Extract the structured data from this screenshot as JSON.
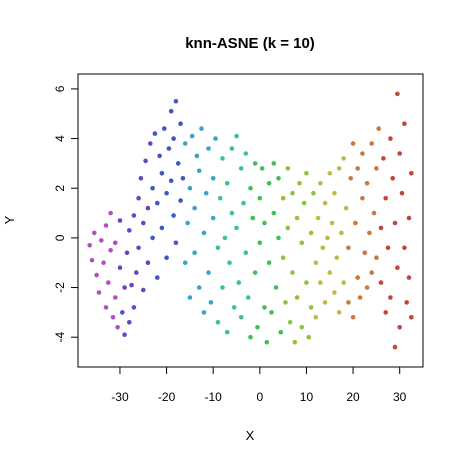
{
  "chart_data": {
    "type": "scatter",
    "title": "knn-ASNE (k = 10)",
    "xlabel": "X",
    "ylabel": "Y",
    "xlim": [
      -39,
      35
    ],
    "ylim": [
      -5.2,
      6.6
    ],
    "x_ticks": [
      -30,
      -20,
      -10,
      0,
      10,
      20,
      30
    ],
    "x_tick_labels": [
      "-30",
      "-20",
      "-10",
      "0",
      "10",
      "20",
      "30"
    ],
    "y_ticks": [
      -4,
      -2,
      0,
      2,
      4,
      6
    ],
    "y_tick_labels": [
      "-4",
      "-2",
      "0",
      "2",
      "4",
      "6"
    ],
    "grid": false,
    "legend": "none",
    "color_scale": [
      "#b54fc0",
      "#6a43c2",
      "#3f56c4",
      "#3aa3c6",
      "#3fbf9c",
      "#43bd55",
      "#8fc23f",
      "#c2b84a",
      "#c6783f",
      "#c3443f"
    ],
    "points": [
      [
        -36.5,
        -0.3
      ],
      [
        -36,
        -0.9
      ],
      [
        -35.5,
        0.2
      ],
      [
        -35,
        -1.5
      ],
      [
        -34.5,
        -2.2
      ],
      [
        -34,
        -0.1
      ],
      [
        -33.5,
        -1
      ],
      [
        -33,
        0.5
      ],
      [
        -33,
        -2.8
      ],
      [
        -32.5,
        -1.8
      ],
      [
        -32,
        -0.5
      ],
      [
        -32,
        1
      ],
      [
        -31.5,
        -3.2
      ],
      [
        -31,
        -2.4
      ],
      [
        -31,
        -0.2
      ],
      [
        -30.5,
        -3.6
      ],
      [
        -30,
        -1.2
      ],
      [
        -30,
        0.7
      ],
      [
        -29.5,
        -3
      ],
      [
        -29,
        -3.9
      ],
      [
        -29,
        -2
      ],
      [
        -28.5,
        -0.6
      ],
      [
        -28,
        -3.4
      ],
      [
        -28,
        0.3
      ],
      [
        -27.5,
        -1.9
      ],
      [
        -27,
        -2.8
      ],
      [
        -27,
        0.9
      ],
      [
        -26.5,
        -1.4
      ],
      [
        -26,
        1.6
      ],
      [
        -26,
        -0.4
      ],
      [
        -25.5,
        2.4
      ],
      [
        -25,
        0.6
      ],
      [
        -25,
        -2.1
      ],
      [
        -24.5,
        3.1
      ],
      [
        -24,
        1.2
      ],
      [
        -24,
        -1
      ],
      [
        -23.5,
        3.8
      ],
      [
        -23,
        2
      ],
      [
        -23,
        0
      ],
      [
        -22.5,
        4.2
      ],
      [
        -22,
        1.4
      ],
      [
        -22,
        -1.6
      ],
      [
        -21.5,
        3.3
      ],
      [
        -21,
        2.6
      ],
      [
        -21,
        0.4
      ],
      [
        -20.5,
        4.4
      ],
      [
        -20,
        1.8
      ],
      [
        -20,
        -0.8
      ],
      [
        -19.5,
        3.6
      ],
      [
        -19,
        5.1
      ],
      [
        -19,
        2.3
      ],
      [
        -18.5,
        0.9
      ],
      [
        -18.5,
        4
      ],
      [
        -18,
        5.5
      ],
      [
        -18,
        -0.2
      ],
      [
        -17.5,
        3
      ],
      [
        -17,
        1.5
      ],
      [
        -17,
        4.6
      ],
      [
        -16.5,
        2.4
      ],
      [
        -16,
        -1
      ],
      [
        -16,
        3.8
      ],
      [
        -15.5,
        0.6
      ],
      [
        -15,
        2
      ],
      [
        -15,
        -2.4
      ],
      [
        -14.5,
        4.1
      ],
      [
        -14,
        1.2
      ],
      [
        -14,
        -0.6
      ],
      [
        -13.5,
        3.3
      ],
      [
        -13,
        -2
      ],
      [
        -13,
        2.7
      ],
      [
        -12.5,
        4.4
      ],
      [
        -12,
        0.2
      ],
      [
        -12,
        -3
      ],
      [
        -11.5,
        1.8
      ],
      [
        -11,
        3.6
      ],
      [
        -11,
        -1.4
      ],
      [
        -10.5,
        -2.6
      ],
      [
        -10,
        0.8
      ],
      [
        -10,
        2.4
      ],
      [
        -9.5,
        4
      ],
      [
        -9,
        -3.4
      ],
      [
        -9,
        -0.4
      ],
      [
        -8.5,
        1.6
      ],
      [
        -8,
        3.2
      ],
      [
        -8,
        -2
      ],
      [
        -7.5,
        0
      ],
      [
        -7,
        2.2
      ],
      [
        -7,
        -3.8
      ],
      [
        -6.5,
        -1
      ],
      [
        -6,
        3.6
      ],
      [
        -6,
        1
      ],
      [
        -5.5,
        -2.8
      ],
      [
        -5,
        4.1
      ],
      [
        -5,
        0.4
      ],
      [
        -4.5,
        -1.8
      ],
      [
        -4,
        2.8
      ],
      [
        -4,
        -3.2
      ],
      [
        -3.5,
        1.4
      ],
      [
        -3,
        -0.6
      ],
      [
        -3,
        3.4
      ],
      [
        -2.5,
        -2.4
      ],
      [
        -2,
        2
      ],
      [
        -2,
        -4
      ],
      [
        -1.5,
        0.8
      ],
      [
        -1,
        3
      ],
      [
        -1,
        -1.4
      ],
      [
        -0.5,
        -3.6
      ],
      [
        0,
        1.6
      ],
      [
        0,
        -0.2
      ],
      [
        0.5,
        2.8
      ],
      [
        1,
        -2.8
      ],
      [
        1,
        0.6
      ],
      [
        1.5,
        -4.2
      ],
      [
        2,
        2.2
      ],
      [
        2,
        -1
      ],
      [
        2.5,
        -3
      ],
      [
        3,
        1
      ],
      [
        3,
        3
      ],
      [
        3.5,
        -2
      ],
      [
        4,
        0
      ],
      [
        4,
        2.4
      ],
      [
        4.5,
        -3.8
      ],
      [
        5,
        -0.8
      ],
      [
        5,
        1.6
      ],
      [
        5.5,
        -2.6
      ],
      [
        6,
        2.8
      ],
      [
        6,
        0.4
      ],
      [
        6.5,
        -3.4
      ],
      [
        7,
        -1.4
      ],
      [
        7,
        1.8
      ],
      [
        7.5,
        -4.2
      ],
      [
        8,
        0.8
      ],
      [
        8,
        -2.4
      ],
      [
        8.5,
        2.2
      ],
      [
        9,
        -0.2
      ],
      [
        9,
        -3.6
      ],
      [
        9.5,
        1.4
      ],
      [
        10,
        -1.8
      ],
      [
        10,
        2.6
      ],
      [
        10.5,
        -4
      ],
      [
        11,
        0.2
      ],
      [
        11,
        -2.8
      ],
      [
        11.5,
        1.8
      ],
      [
        12,
        -1
      ],
      [
        12,
        -3.2
      ],
      [
        12.5,
        0.8
      ],
      [
        13,
        2.2
      ],
      [
        13,
        -1.8
      ],
      [
        13.5,
        -0.4
      ],
      [
        14,
        1.4
      ],
      [
        14,
        -2.6
      ],
      [
        14.5,
        0
      ],
      [
        15,
        -1.4
      ],
      [
        15,
        2.6
      ],
      [
        15.5,
        0.6
      ],
      [
        16,
        -2.2
      ],
      [
        16,
        1.8
      ],
      [
        16.5,
        -0.8
      ],
      [
        17,
        2.8
      ],
      [
        17,
        -3
      ],
      [
        17.5,
        0.2
      ],
      [
        18,
        -1.8
      ],
      [
        18,
        3.2
      ],
      [
        18.5,
        1.2
      ],
      [
        19,
        -2.6
      ],
      [
        19,
        -0.4
      ],
      [
        19.5,
        2.4
      ],
      [
        20,
        -3.2
      ],
      [
        20,
        3.8
      ],
      [
        20.5,
        0.6
      ],
      [
        21,
        -1.6
      ],
      [
        21,
        2.8
      ],
      [
        21.5,
        -2.4
      ],
      [
        22,
        1.6
      ],
      [
        22,
        3.4
      ],
      [
        22.5,
        -0.6
      ],
      [
        23,
        -2
      ],
      [
        23,
        2.2
      ],
      [
        23.5,
        0.2
      ],
      [
        24,
        3.8
      ],
      [
        24,
        -1.4
      ],
      [
        24.5,
        1
      ],
      [
        25,
        -0.8
      ],
      [
        25,
        2.8
      ],
      [
        25.5,
        4.4
      ],
      [
        26,
        -1.8
      ],
      [
        26,
        0.4
      ],
      [
        26.5,
        3.2
      ],
      [
        27,
        -3
      ],
      [
        27,
        1.6
      ],
      [
        27.5,
        -0.4
      ],
      [
        28,
        4
      ],
      [
        28,
        -2.4
      ],
      [
        28.5,
        2.4
      ],
      [
        29,
        -4.4
      ],
      [
        29,
        0.6
      ],
      [
        29.5,
        5.8
      ],
      [
        29.5,
        -1.2
      ],
      [
        30,
        3.4
      ],
      [
        30,
        -3.6
      ],
      [
        30.5,
        1.8
      ],
      [
        31,
        -0.4
      ],
      [
        31,
        4.6
      ],
      [
        31.5,
        -2.6
      ],
      [
        32,
        0.8
      ],
      [
        32,
        -1.6
      ],
      [
        32.5,
        2.6
      ],
      [
        32.5,
        -3.2
      ]
    ]
  }
}
